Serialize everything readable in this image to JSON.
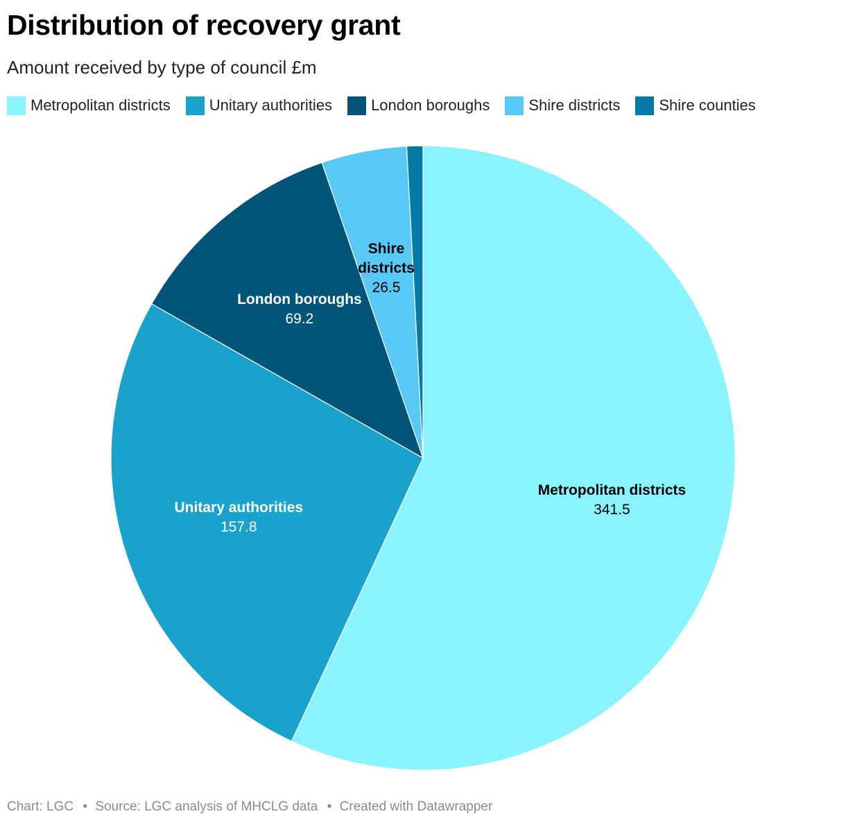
{
  "header": {
    "title": "Distribution of recovery grant",
    "subtitle": "Amount received by type of council £m"
  },
  "chart_data": {
    "type": "pie",
    "title": "Distribution of recovery grant",
    "subtitle": "Amount received by type of council £m",
    "unit": "£m",
    "legend_position": "top-left",
    "slices": [
      {
        "name": "Metropolitan districts",
        "value": 341.5,
        "value_label": "341.5",
        "color": "#89f4fd",
        "label_lines": [
          "Metropolitan districts"
        ],
        "label_color": "#000000"
      },
      {
        "name": "Unitary authorities",
        "value": 157.8,
        "value_label": "157.8",
        "color": "#19a2cc",
        "label_lines": [
          "Unitary authorities"
        ],
        "label_color": "#ffffff"
      },
      {
        "name": "London boroughs",
        "value": 69.2,
        "value_label": "69.2",
        "color": "#025579",
        "label_lines": [
          "London boroughs"
        ],
        "label_color": "#ffffff"
      },
      {
        "name": "Shire districts",
        "value": 26.5,
        "value_label": "26.5",
        "color": "#58c9f7",
        "label_lines": [
          "Shire",
          "districts"
        ],
        "label_color": "#000000"
      },
      {
        "name": "Shire counties",
        "value": 5.0,
        "value_label": "",
        "color": "#037ba6",
        "label_lines": [],
        "label_color": "#ffffff"
      }
    ]
  },
  "footer": {
    "chart_credit": "Chart: LGC",
    "source": "Source: LGC analysis of MHCLG data",
    "created_with": "Created with Datawrapper",
    "separator": "•"
  }
}
